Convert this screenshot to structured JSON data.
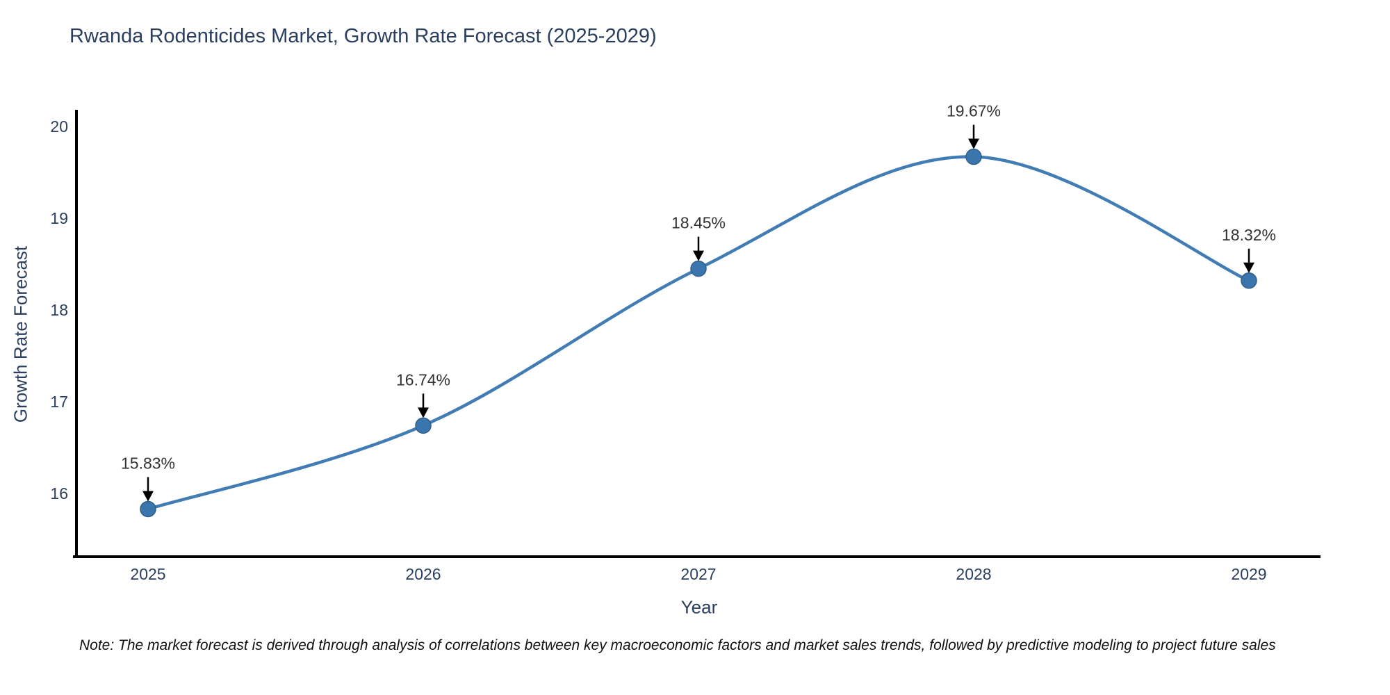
{
  "chart_data": {
    "type": "line",
    "title": "Rwanda Rodenticides Market, Growth Rate Forecast (2025-2029)",
    "xlabel": "Year",
    "ylabel": "Growth Rate Forecast",
    "x": [
      2025,
      2026,
      2027,
      2028,
      2029
    ],
    "series": [
      {
        "name": "Growth Rate Forecast",
        "values": [
          15.83,
          16.74,
          18.45,
          19.67,
          18.32
        ]
      }
    ],
    "point_labels": [
      "15.83%",
      "16.74%",
      "18.45%",
      "19.67%",
      "18.32%"
    ],
    "xticks": [
      "2025",
      "2026",
      "2027",
      "2028",
      "2029"
    ],
    "yticks": [
      "16",
      "17",
      "18",
      "19",
      "20"
    ],
    "ylim": [
      15.3,
      20.2
    ],
    "line_shape": "spline",
    "grid": false,
    "legend": false,
    "colors": {
      "line": "#417db4",
      "marker_fill": "#3a76ad",
      "marker_stroke": "#2e5f8c",
      "axis_line": "#000000",
      "title_text": "#2a3f5f",
      "tick_text": "#2a3f5f",
      "annotation_text": "#333333",
      "arrow": "#000000"
    },
    "note": "Note: The market forecast is derived through analysis of correlations between key macroeconomic factors and market sales trends, followed by predictive modeling to project future sales"
  }
}
